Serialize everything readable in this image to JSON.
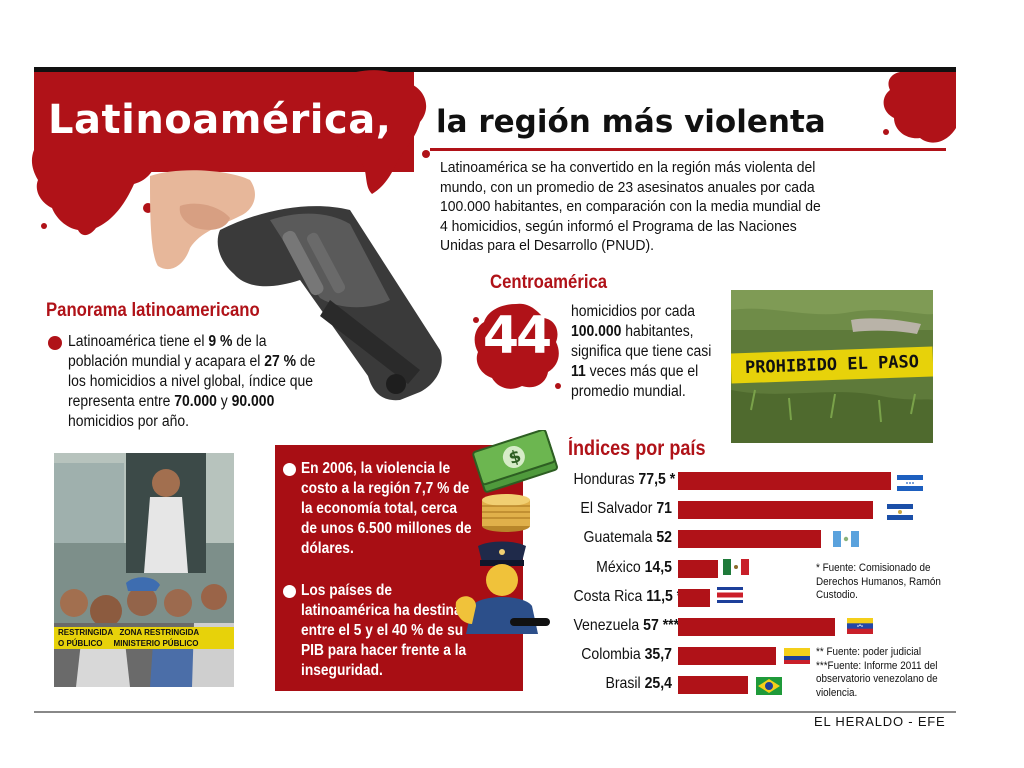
{
  "header": {
    "title_main": "Latinoamérica,",
    "title_sub": "la región más violenta",
    "intro": "Latinoamérica se ha convertido en la región más violenta del mundo, con un promedio de 23 asesinatos anuales por cada 100.000 habitantes, en comparación con la media mundial de 4 homicidios, según informó el Programa de las Naciones Unidas para el Desarrollo (PNUD)."
  },
  "panorama": {
    "title": "Panorama latinoamericano",
    "text_parts": [
      "Latinoamérica tiene el ",
      "9 %",
      " de la población mundial y acapara el ",
      "27 %",
      " de los homicidios a nivel global, índice que representa entre ",
      "70.000",
      " y ",
      "90.000",
      " homicidios por año."
    ]
  },
  "centroamerica": {
    "title": "Centroamérica",
    "number": "44",
    "text_parts": [
      "homicidios por cada ",
      "100.000",
      " habitantes, significa que tiene casi ",
      "11",
      " veces más que el promedio mundial."
    ]
  },
  "photo_tape": {
    "label": "PROHIBIDO EL PASO"
  },
  "crowd_tape": {
    "label": "RESTRINGIDA   ZONA RESTRINGIDA\nO PÚBLICO     MINISTERIO PÚBLICO"
  },
  "economy": {
    "items": [
      "En 2006, la violencia le costo a la región 7,7 % de la economía total, cerca de unos 6.500 millones de dólares.",
      "Los países de latinoamérica ha destinan entre el 5 y el 40 % de su PIB para hacer frente a la inseguridad."
    ]
  },
  "chart_data": {
    "type": "bar",
    "title": "Índices por país",
    "orientation": "horizontal",
    "categories": [
      "Honduras",
      "El Salvador",
      "Guatemala",
      "México",
      "Costa Rica",
      "Venezuela",
      "Colombia",
      "Brasil"
    ],
    "values": [
      77.5,
      71,
      52,
      14.5,
      11.5,
      57,
      35.7,
      25.4
    ],
    "value_labels": [
      "77,5",
      "71",
      "52",
      "14,5",
      "11,5",
      "57",
      "35,7",
      "25,4"
    ],
    "markers": [
      "*",
      "",
      "",
      "",
      "**",
      "***",
      "",
      ""
    ],
    "bar_color": "#b01218",
    "grid": false,
    "legend": "none"
  },
  "notes": {
    "note1": "* Fuente: Comisionado de Derechos Humanos, Ramón Custodio.",
    "note2": "** Fuente: poder judicial\n***Fuente: Informe 2011 del observatorio venezolano de violencia."
  },
  "credit": "EL HERALDO - EFE",
  "colors": {
    "accent": "#b01218",
    "tape": "#e7d20a",
    "ink": "#111111"
  }
}
